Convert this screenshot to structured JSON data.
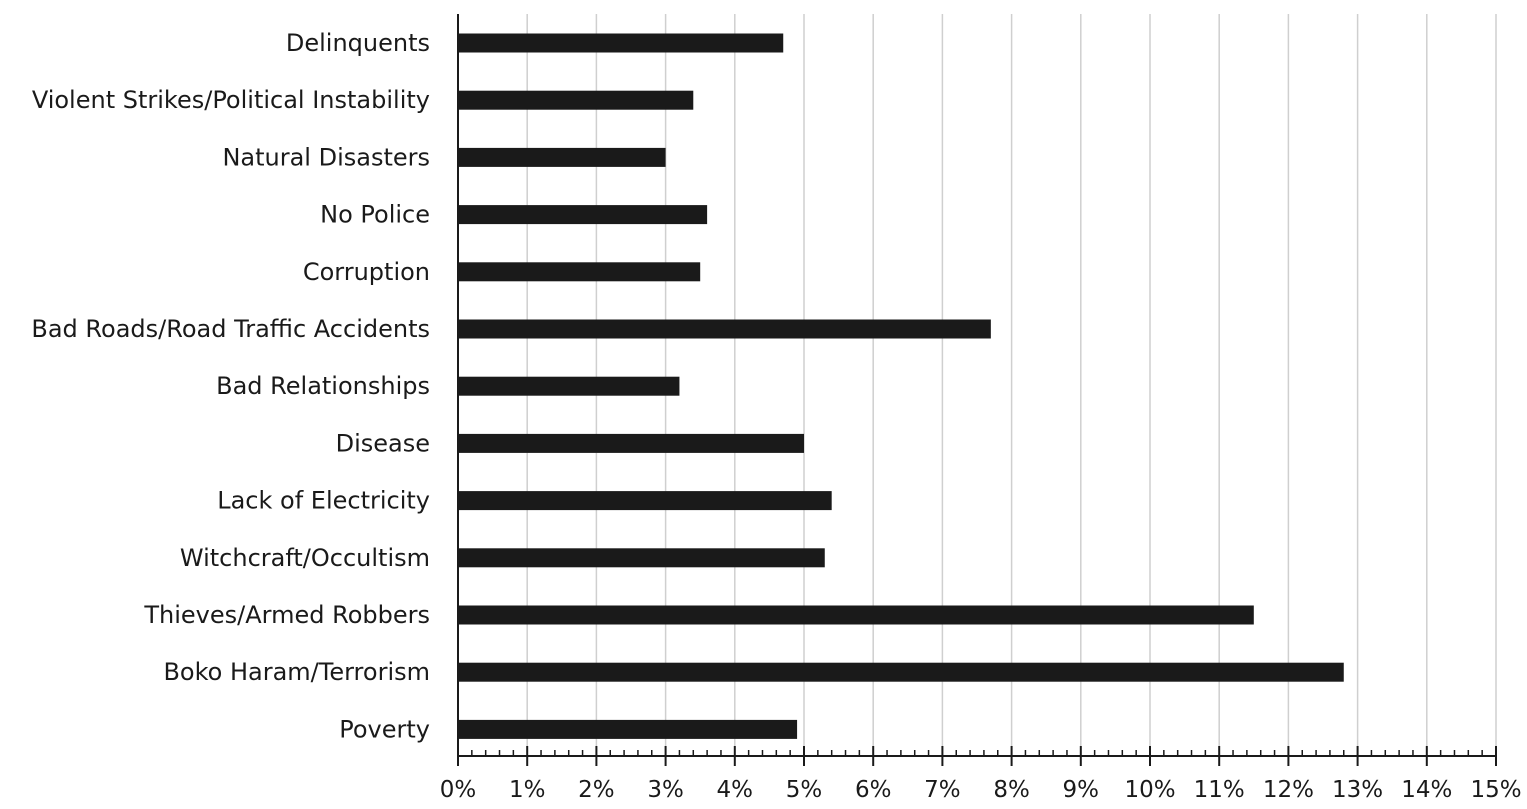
{
  "chart_data": {
    "type": "bar",
    "orientation": "horizontal",
    "title": "",
    "xlabel": "",
    "ylabel": "",
    "categories": [
      "Delinquents",
      "Violent Strikes/Political Instability",
      "Natural Disasters",
      "No Police",
      "Corruption",
      "Bad Roads/Road Traffic Accidents",
      "Bad Relationships",
      "Disease",
      "Lack of Electricity",
      "Witchcraft/Occultism",
      "Thieves/Armed Robbers",
      "Boko Haram/Terrorism",
      "Poverty"
    ],
    "values": [
      4.7,
      3.4,
      3.0,
      3.6,
      3.5,
      7.7,
      3.2,
      5.0,
      5.4,
      5.3,
      11.5,
      12.8,
      4.9
    ],
    "value_unit": "%",
    "xlim": [
      0,
      15
    ],
    "x_ticks": [
      "0%",
      "1%",
      "2%",
      "3%",
      "4%",
      "5%",
      "6%",
      "7%",
      "8%",
      "9%",
      "10%",
      "11%",
      "12%",
      "13%",
      "14%",
      "15%"
    ],
    "minor_ticks_per_major": 5,
    "grid": "vertical",
    "legend": "none",
    "colors": {
      "bar": "#1a1a1a",
      "grid": "#cfcfcf",
      "axis": "#1a1a1a",
      "text": "#1a1a1a"
    }
  }
}
